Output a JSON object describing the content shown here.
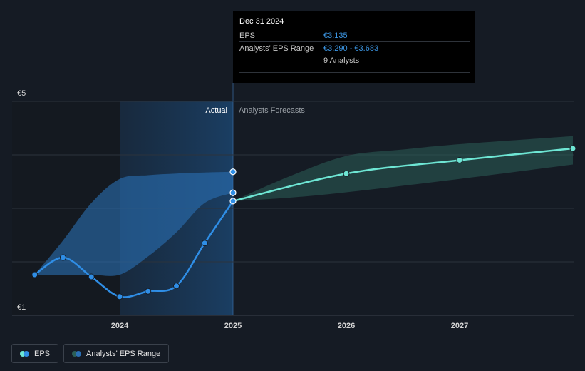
{
  "chart_data": {
    "type": "line",
    "x_ticks": [
      "2024",
      "2025",
      "2026",
      "2027"
    ],
    "y_tick_labels": [
      "€5",
      "€1"
    ],
    "ylim": [
      1,
      5
    ],
    "region_labels": {
      "actual": "Actual",
      "forecast": "Analysts Forecasts"
    },
    "series": [
      {
        "name": "EPS",
        "kind": "actual",
        "points": [
          {
            "x": 2023.25,
            "y": 1.76
          },
          {
            "x": 2023.5,
            "y": 2.08
          },
          {
            "x": 2023.75,
            "y": 1.72
          },
          {
            "x": 2024.0,
            "y": 1.35
          },
          {
            "x": 2024.25,
            "y": 1.45
          },
          {
            "x": 2024.5,
            "y": 1.55
          },
          {
            "x": 2024.75,
            "y": 2.35
          },
          {
            "x": 2025.0,
            "y": 3.135
          }
        ],
        "color": "#2f8ee6"
      },
      {
        "name": "EPS",
        "kind": "forecast",
        "points": [
          {
            "x": 2025.0,
            "y": 3.135
          },
          {
            "x": 2026.0,
            "y": 3.65
          },
          {
            "x": 2027.0,
            "y": 3.9
          },
          {
            "x": 2028.0,
            "y": 4.12
          }
        ],
        "color": "#6ee6d4"
      }
    ],
    "ranges": [
      {
        "name": "Analysts' EPS Range",
        "kind": "actual",
        "color": "#2a6fb4",
        "low": [
          {
            "x": 2023.25,
            "y": 1.76
          },
          {
            "x": 2023.5,
            "y": 1.76
          },
          {
            "x": 2023.75,
            "y": 1.76
          },
          {
            "x": 2024.0,
            "y": 1.76
          },
          {
            "x": 2024.25,
            "y": 2.1
          },
          {
            "x": 2024.5,
            "y": 2.55
          },
          {
            "x": 2024.75,
            "y": 3.1
          },
          {
            "x": 2025.0,
            "y": 3.29
          }
        ],
        "high": [
          {
            "x": 2023.25,
            "y": 1.76
          },
          {
            "x": 2023.5,
            "y": 2.4
          },
          {
            "x": 2023.75,
            "y": 3.1
          },
          {
            "x": 2024.0,
            "y": 3.55
          },
          {
            "x": 2024.25,
            "y": 3.62
          },
          {
            "x": 2024.5,
            "y": 3.65
          },
          {
            "x": 2024.75,
            "y": 3.67
          },
          {
            "x": 2025.0,
            "y": 3.683
          }
        ]
      },
      {
        "name": "Analysts' EPS Range",
        "kind": "forecast",
        "color": "#2c5f57",
        "low": [
          {
            "x": 2025.0,
            "y": 3.135
          },
          {
            "x": 2025.5,
            "y": 3.2
          },
          {
            "x": 2026.0,
            "y": 3.3
          },
          {
            "x": 2027.0,
            "y": 3.55
          },
          {
            "x": 2028.0,
            "y": 3.82
          }
        ],
        "high": [
          {
            "x": 2025.0,
            "y": 3.135
          },
          {
            "x": 2025.5,
            "y": 3.6
          },
          {
            "x": 2026.0,
            "y": 3.98
          },
          {
            "x": 2026.5,
            "y": 4.1
          },
          {
            "x": 2027.0,
            "y": 4.2
          },
          {
            "x": 2028.0,
            "y": 4.35
          }
        ]
      }
    ],
    "extra_markers": [
      {
        "x": 2025.0,
        "y": 3.683
      },
      {
        "x": 2025.0,
        "y": 3.29
      }
    ],
    "grid": true
  },
  "tooltip": {
    "date": "Dec 31 2024",
    "eps_label": "EPS",
    "eps_value": "€3.135",
    "range_label": "Analysts' EPS Range",
    "range_value": "€3.290 - €3.683",
    "analysts": "9 Analysts"
  },
  "legend": {
    "eps": "EPS",
    "range": "Analysts' EPS Range"
  },
  "colors": {
    "eps_actual": "#2f8ee6",
    "eps_forecast": "#6ee6d4",
    "range_actual": "#2a6fb4",
    "range_forecast": "#2c5f57"
  }
}
